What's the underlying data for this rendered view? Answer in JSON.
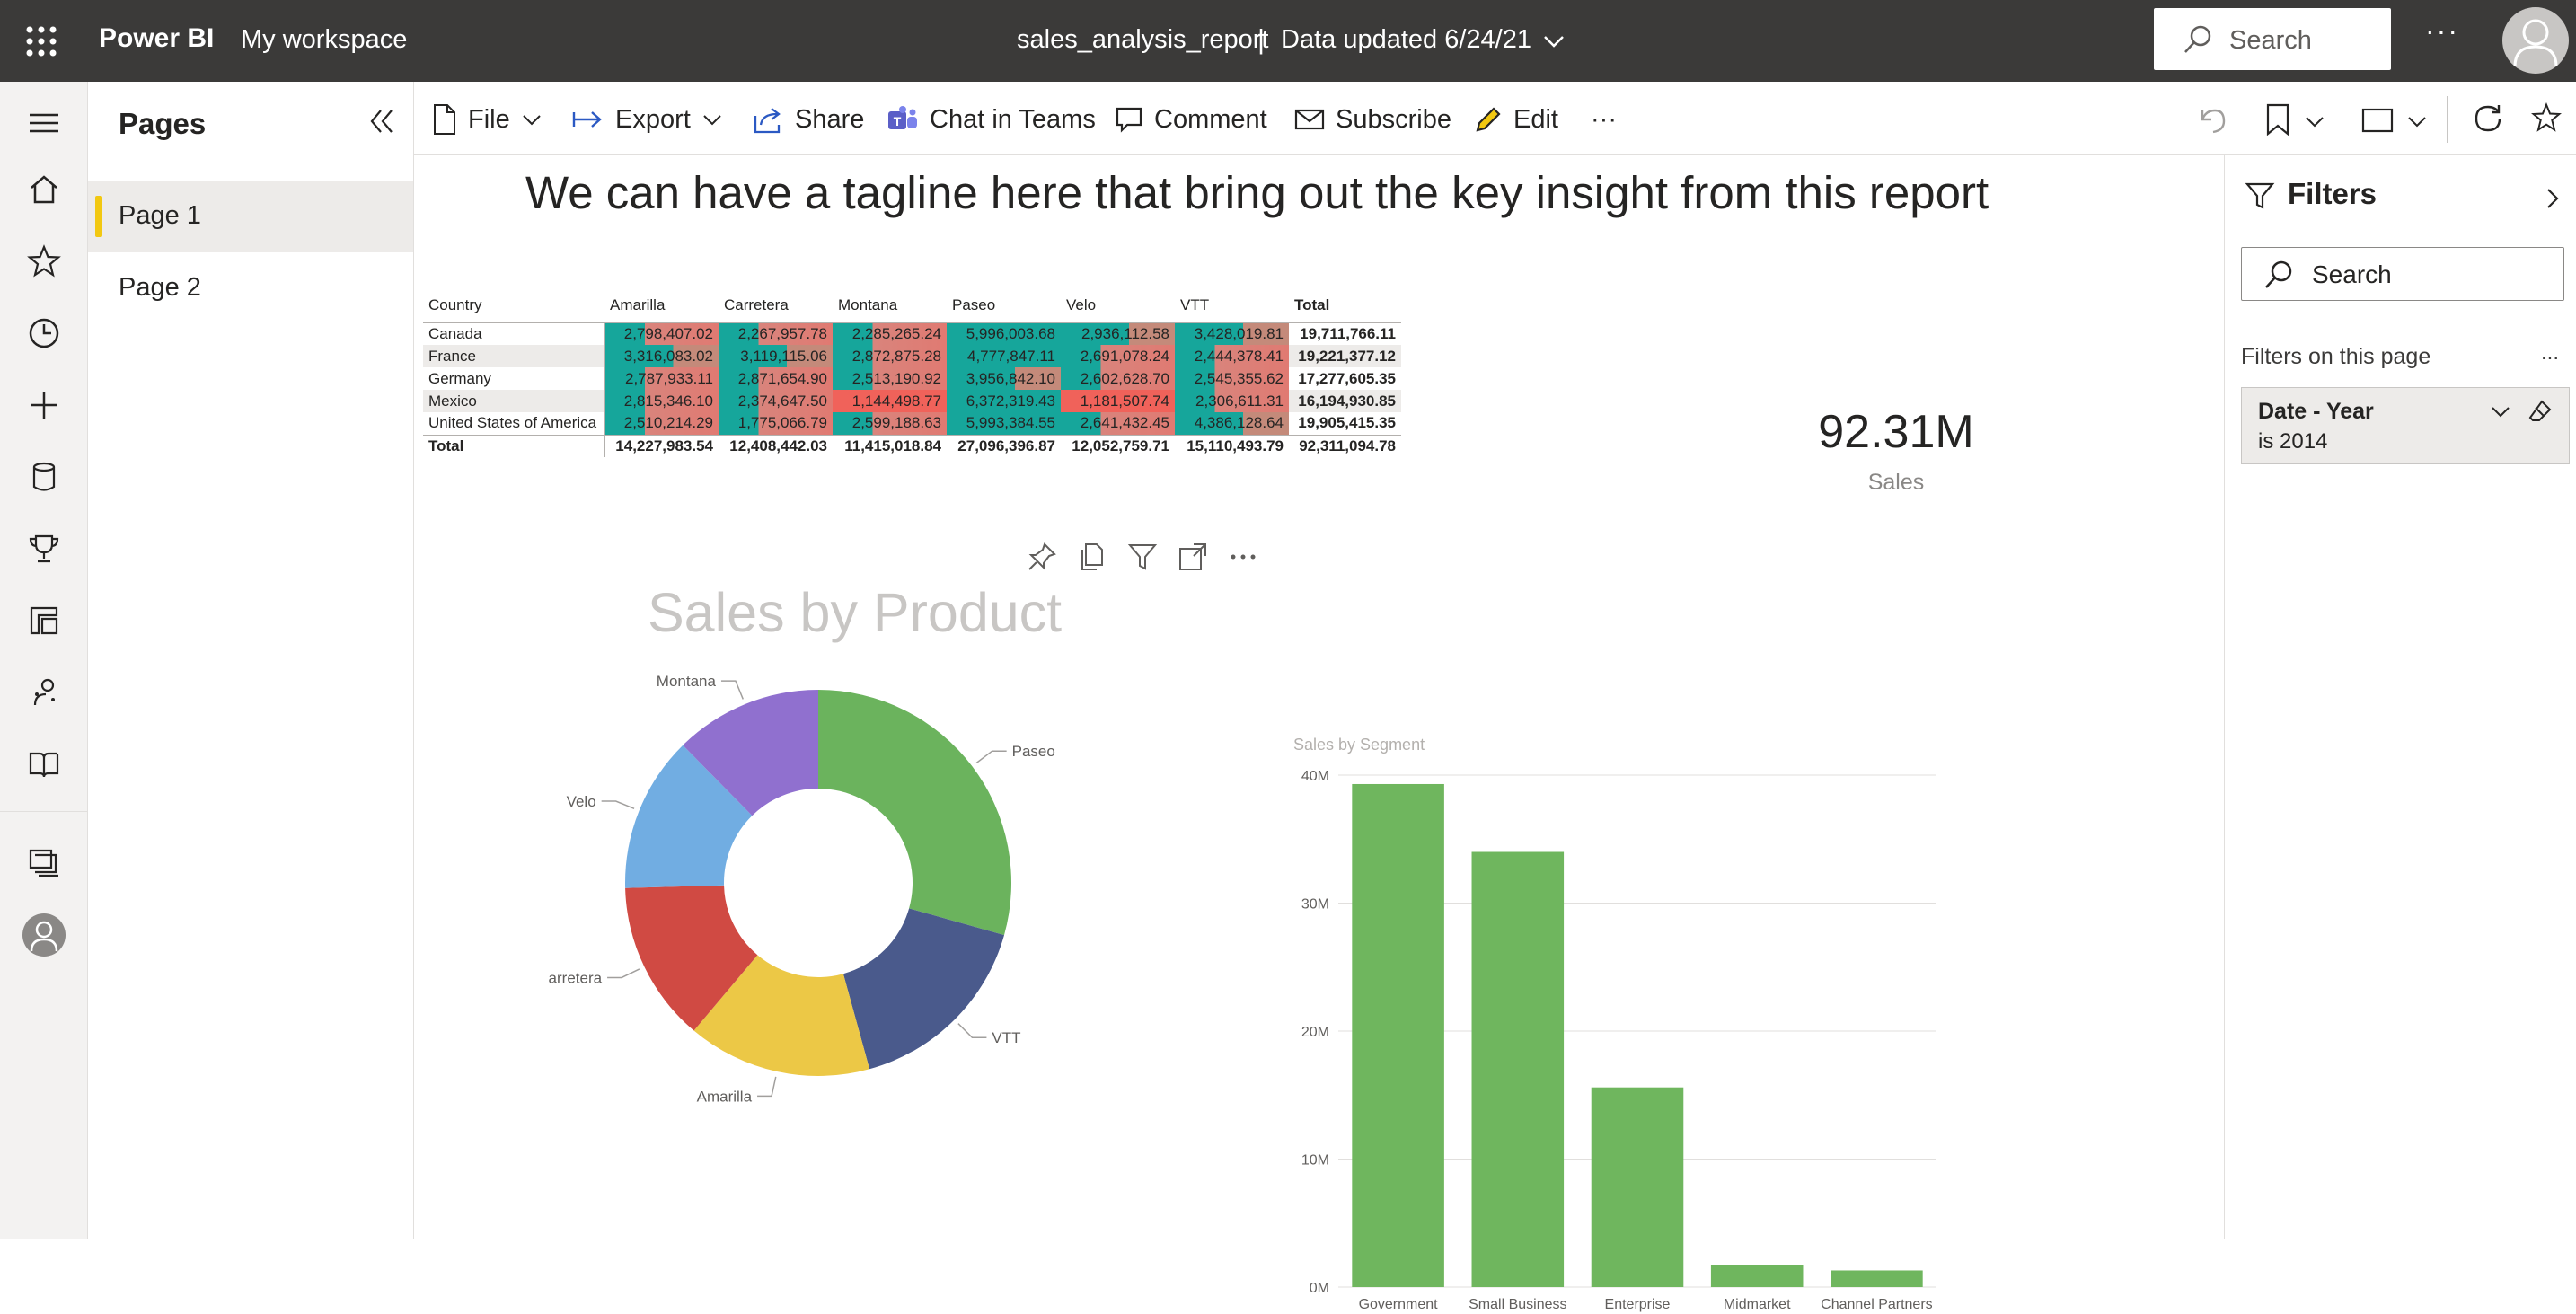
{
  "topbar": {
    "brand": "Power BI",
    "workspace": "My workspace",
    "report_title": "sales_analysis_report",
    "separator": "|",
    "data_updated": "Data updated 6/24/21",
    "search_placeholder": "Search",
    "more": "···"
  },
  "pages_pane": {
    "header": "Pages",
    "pages": [
      {
        "label": "Page 1",
        "active": true
      },
      {
        "label": "Page 2",
        "active": false
      }
    ]
  },
  "actionbar": {
    "file": "File",
    "export": "Export",
    "share": "Share",
    "chat": "Chat in Teams",
    "comment": "Comment",
    "subscribe": "Subscribe",
    "edit": "Edit",
    "more": "···"
  },
  "report": {
    "tagline": "We can have a tagline here that bring out the key insight from this report",
    "card": {
      "value": "92.31M",
      "label": "Sales"
    },
    "donut_title": "Sales by Product",
    "bar_title": "Sales by Segment"
  },
  "matrix": {
    "columns": [
      "Country",
      "Amarilla",
      "Carretera",
      "Montana",
      "Paseo",
      "Velo",
      "VTT",
      "Total"
    ],
    "rows": [
      {
        "label": "Canada",
        "values": [
          "2,798,407.02",
          "2,267,957.78",
          "2,285,265.24",
          "5,996,003.68",
          "2,936,112.58",
          "3,428,019.81"
        ],
        "total": "19,711,766.11"
      },
      {
        "label": "France",
        "values": [
          "3,316,083.02",
          "3,119,115.06",
          "2,872,875.28",
          "4,777,847.11",
          "2,691,078.24",
          "2,444,378.41"
        ],
        "total": "19,221,377.12"
      },
      {
        "label": "Germany",
        "values": [
          "2,787,933.11",
          "2,871,654.90",
          "2,513,190.92",
          "3,956,842.10",
          "2,602,628.70",
          "2,545,355.62"
        ],
        "total": "17,277,605.35"
      },
      {
        "label": "Mexico",
        "values": [
          "2,815,346.10",
          "2,374,647.50",
          "1,144,498.77",
          "6,372,319.43",
          "1,181,507.74",
          "2,306,611.31"
        ],
        "total": "16,194,930.85"
      },
      {
        "label": "United States of America",
        "values": [
          "2,510,214.29",
          "1,775,066.79",
          "2,599,188.63",
          "5,993,384.55",
          "2,641,432.45",
          "4,386,128.64"
        ],
        "total": "19,905,415.35"
      }
    ],
    "total_row": {
      "label": "Total",
      "values": [
        "14,227,983.54",
        "12,408,442.03",
        "11,415,018.84",
        "27,096,396.87",
        "12,052,759.71",
        "15,110,493.79"
      ],
      "total": "92,311,094.78"
    }
  },
  "filters": {
    "header": "Filters",
    "search_placeholder": "Search",
    "on_this_page": "Filters on this page",
    "more": "...",
    "card": {
      "name": "Date - Year",
      "value": "is 2014"
    }
  },
  "chart_data": [
    {
      "type": "pie",
      "title": "Sales by Product",
      "donut": true,
      "categories": [
        "Paseo",
        "VTT",
        "Amarilla",
        "Carretera",
        "Velo",
        "Montana"
      ],
      "values": [
        27096396.87,
        15110493.79,
        14227983.54,
        12408442.03,
        12052759.71,
        11415018.84
      ],
      "colors": [
        "#6bb35d",
        "#4a5a8c",
        "#ecc846",
        "#d04a43",
        "#71ade2",
        "#9070cf"
      ]
    },
    {
      "type": "bar",
      "title": "Sales by Segment",
      "categories": [
        "Government",
        "Small Business",
        "Enterprise",
        "Midmarket",
        "Channel Partners"
      ],
      "values": [
        39300000,
        34000000,
        15600000,
        1700000,
        1300000
      ],
      "ylim": [
        0,
        40000000
      ],
      "yticks": [
        "0M",
        "10M",
        "20M",
        "30M",
        "40M"
      ],
      "color": "#6fb65e",
      "grid": true
    }
  ]
}
